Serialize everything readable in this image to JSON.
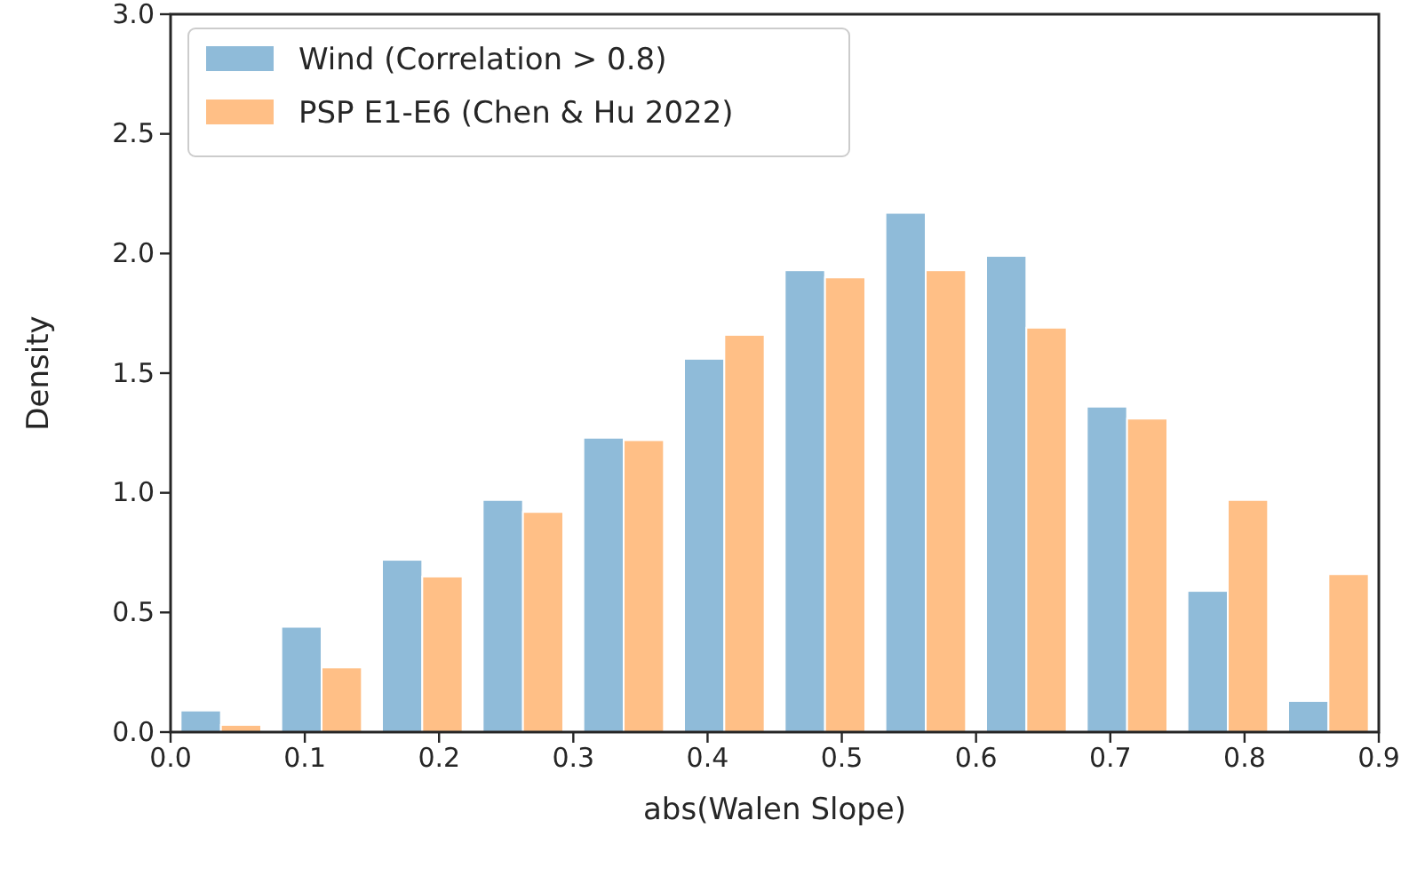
{
  "chart_data": {
    "type": "histogram",
    "xlabel": "abs(Walen Slope)",
    "ylabel": "Density",
    "bins": [
      0,
      0.075,
      0.15,
      0.225,
      0.3,
      0.375,
      0.45,
      0.525,
      0.6,
      0.675,
      0.75,
      0.825,
      0.9
    ],
    "series": [
      {
        "name": "Wind (Correlation > 0.8)",
        "color": "#8fbbd9",
        "values": [
          0.09,
          0.44,
          0.72,
          0.97,
          1.23,
          1.56,
          1.93,
          2.17,
          1.99,
          1.36,
          0.59,
          0.13
        ]
      },
      {
        "name": "PSP E1-E6 (Chen & Hu 2022)",
        "color": "#ffbf86",
        "values": [
          0.03,
          0.27,
          0.65,
          0.92,
          1.22,
          1.66,
          1.9,
          1.93,
          1.69,
          1.31,
          0.97,
          0.66
        ]
      }
    ],
    "xlim": [
      0,
      0.9
    ],
    "xticks": [
      {
        "value": 0,
        "label": "0.0"
      },
      0.1,
      0.2,
      0.3,
      0.4,
      0.5,
      0.6,
      0.7,
      0.8,
      0.9
    ],
    "ylim": [
      0,
      3
    ],
    "yticks": [
      {
        "value": 0,
        "label": "0.0"
      },
      0.5,
      {
        "value": 1,
        "label": "1.0"
      },
      1.5,
      {
        "value": 2,
        "label": "2.0"
      },
      2.5,
      {
        "value": 3,
        "label": "3.0"
      }
    ],
    "legend": "top left"
  }
}
